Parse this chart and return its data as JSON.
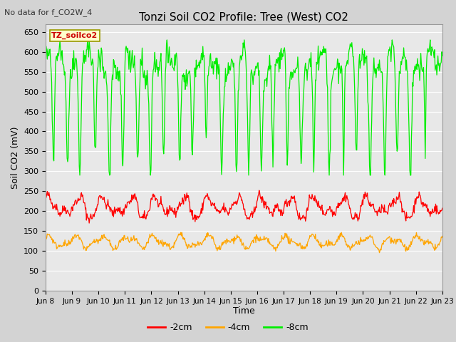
{
  "title": "Tonzi Soil CO2 Profile: Tree (West) CO2",
  "subtitle": "No data for f_CO2W_4",
  "ylabel": "Soil CO2 (mV)",
  "xlabel": "Time",
  "legend_label": "TZ_soilco2",
  "series_labels": [
    "-2cm",
    "-4cm",
    "-8cm"
  ],
  "series_colors": [
    "#ff0000",
    "#ffa500",
    "#00ee00"
  ],
  "ylim": [
    0,
    670
  ],
  "yticks": [
    0,
    50,
    100,
    150,
    200,
    250,
    300,
    350,
    400,
    450,
    500,
    550,
    600,
    650
  ],
  "xtick_labels": [
    "Jun 8",
    "Jun 9",
    "Jun 10",
    "Jun 11",
    "Jun 12",
    "Jun 13",
    "Jun 14",
    "Jun 15",
    "Jun 16",
    "Jun 17",
    "Jun 18",
    "Jun 19",
    "Jun 20",
    "Jun 21",
    "Jun 22",
    "Jun 23"
  ],
  "background_color": "#d3d3d3",
  "plot_bg_color": "#e8e8e8",
  "grid_color": "#ffffff",
  "legend_box_color": "#ffffcc",
  "legend_box_edge": "#999900"
}
